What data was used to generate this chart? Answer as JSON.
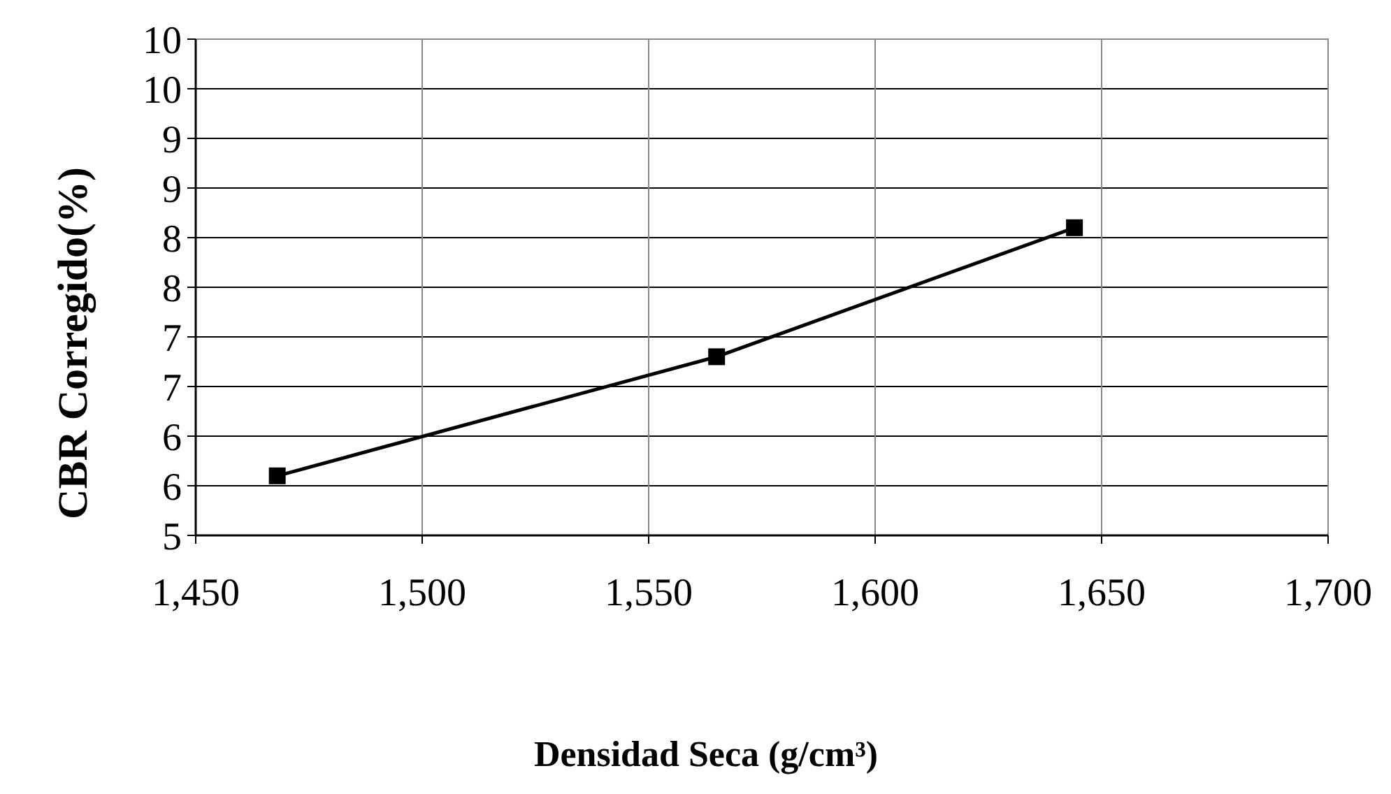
{
  "chart_data": {
    "type": "line",
    "xlabel": "Densidad Seca (g/cm³)",
    "ylabel": "CBR Corregido(%)",
    "x": [
      1468,
      1565,
      1644
    ],
    "series": [
      {
        "color": "#000000",
        "values": [
          5.6,
          6.8,
          8.1
        ]
      }
    ],
    "xlim": [
      1450,
      1700
    ],
    "xticks": [
      {
        "value": 1450,
        "label": "1,450"
      },
      {
        "value": 1500,
        "label": "1,500"
      },
      {
        "value": 1550,
        "label": "1,550"
      },
      {
        "value": 1600,
        "label": "1,600"
      },
      {
        "value": 1650,
        "label": "1,650"
      },
      {
        "value": 1700,
        "label": "1,700"
      }
    ],
    "ylim": [
      5,
      10
    ],
    "yticks": [
      5,
      {
        "value": 5.5,
        "label": "6"
      },
      6,
      {
        "value": 6.5,
        "label": "7"
      },
      7,
      {
        "value": 7.5,
        "label": "8"
      },
      8,
      {
        "value": 8.5,
        "label": "9"
      },
      9,
      {
        "value": 9.5,
        "label": "10"
      },
      10
    ],
    "grid": true,
    "marker": "square",
    "line_style": "solid"
  }
}
